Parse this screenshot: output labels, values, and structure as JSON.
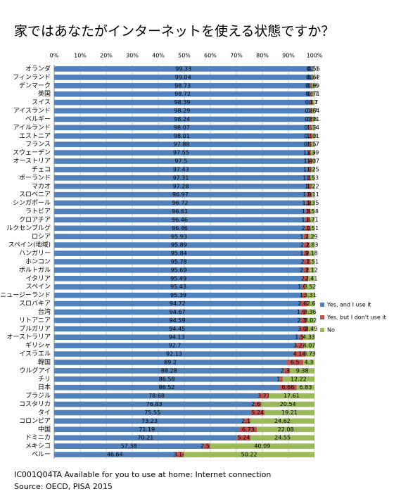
{
  "chart_data": {
    "type": "stacked-bar-horizontal",
    "title": "家ではあなたがインターネットを使える状態ですか？",
    "footnote": "IC001Q04TA Available for you to use at home: Internet connection",
    "source": "Source: OECD, PISA 2015",
    "categories": [
      "オランダ",
      "フィンランド",
      "デンマーク",
      "英国",
      "スイス",
      "アイスランド",
      "ベルギー",
      "アイルランド",
      "エストニア",
      "フランス",
      "スウェーデン",
      "オーストリア",
      "チェコ",
      "ポーランド",
      "マカオ",
      "スロベニア",
      "シンガポール",
      "ラトビア",
      "クロアチア",
      "ルクセンブルグ",
      "ロシア",
      "スペイン(地域)",
      "ハンガリー",
      "ホンコン",
      "ポルトガル",
      "イタリア",
      "スペイン",
      "ニュージーランド",
      "スロバキア",
      "台湾",
      "リトアニア",
      "ブルガリア",
      "オーストラリア",
      "ギリシャ",
      "イスラエル",
      "韓国",
      "ウルグアイ",
      "チリ",
      "日本",
      "ブラジル",
      "コスタリカ",
      "タイ",
      "コロンビア",
      "中国",
      "ドミニカ",
      "メキシコ",
      "ペルー"
    ],
    "series": [
      {
        "name": "Yes, and I use it",
        "color": "#4f81bd",
        "values": [
          99.33,
          99.04,
          98.73,
          98.72,
          98.39,
          98.29,
          98.24,
          98.07,
          98.01,
          97.88,
          97.55,
          97.5,
          97.43,
          97.31,
          97.28,
          96.97,
          96.72,
          96.61,
          96.46,
          96.46,
          95.93,
          95.89,
          95.84,
          95.78,
          95.69,
          95.49,
          95.43,
          95.39,
          94.72,
          94.67,
          94.59,
          94.45,
          94.13,
          92.7,
          92.13,
          89.2,
          88.28,
          86.58,
          86.52,
          78.68,
          76.83,
          75.55,
          73.23,
          71.19,
          70.21,
          57.38,
          46.64
        ]
      },
      {
        "name": "Yes, but I don't use it",
        "color": "#c0504d",
        "values": [
          0.11,
          0.34,
          0.38,
          0.57,
          0.91,
          0.87,
          0.85,
          0.79,
          0.98,
          0.95,
          1.06,
          1.43,
          1.32,
          1.16,
          1.5,
          1.92,
          1.93,
          1.81,
          1.83,
          2.03,
          1.78,
          2.28,
          1.98,
          2.71,
          2.19,
          2.1,
          1.05,
          1.3,
          2.68,
          1.97,
          2.39,
          3.06,
          1.54,
          3.23,
          4.14,
          6.5,
          2.34,
          1.2,
          6.66,
          3.71,
          2.68,
          5.24,
          2.15,
          6.73,
          5.24,
          2.53,
          3.14
        ]
      },
      {
        "name": "No",
        "color": "#9bbb59",
        "values": [
          0.56,
          0.62,
          0.89,
          0.71,
          0.7,
          0.84,
          0.91,
          1.14,
          1.01,
          1.17,
          1.39,
          1.07,
          1.25,
          1.53,
          1.22,
          1.11,
          1.35,
          1.58,
          1.71,
          1.51,
          2.29,
          1.83,
          2.18,
          1.51,
          2.12,
          2.41,
          3.52,
          3.31,
          2.6,
          3.36,
          3.02,
          2.49,
          4.33,
          4.07,
          3.73,
          4.3,
          9.38,
          12.22,
          6.83,
          17.61,
          20.54,
          19.21,
          24.62,
          22.08,
          24.55,
          40.09,
          50.22
        ]
      }
    ],
    "xlim": [
      0,
      100
    ],
    "xticks": [
      {
        "value": 0,
        "label": "0%"
      },
      {
        "value": 10,
        "label": "10%"
      },
      {
        "value": 20,
        "label": "20%"
      },
      {
        "value": 30,
        "label": "30%"
      },
      {
        "value": 40,
        "label": "40%"
      },
      {
        "value": 50,
        "label": "50%"
      },
      {
        "value": 60,
        "label": "60%"
      },
      {
        "value": 70,
        "label": "70%"
      },
      {
        "value": 80,
        "label": "80%"
      },
      {
        "value": 90,
        "label": "90%"
      },
      {
        "value": 100,
        "label": "100%"
      }
    ],
    "grid": true,
    "legend": "right"
  }
}
